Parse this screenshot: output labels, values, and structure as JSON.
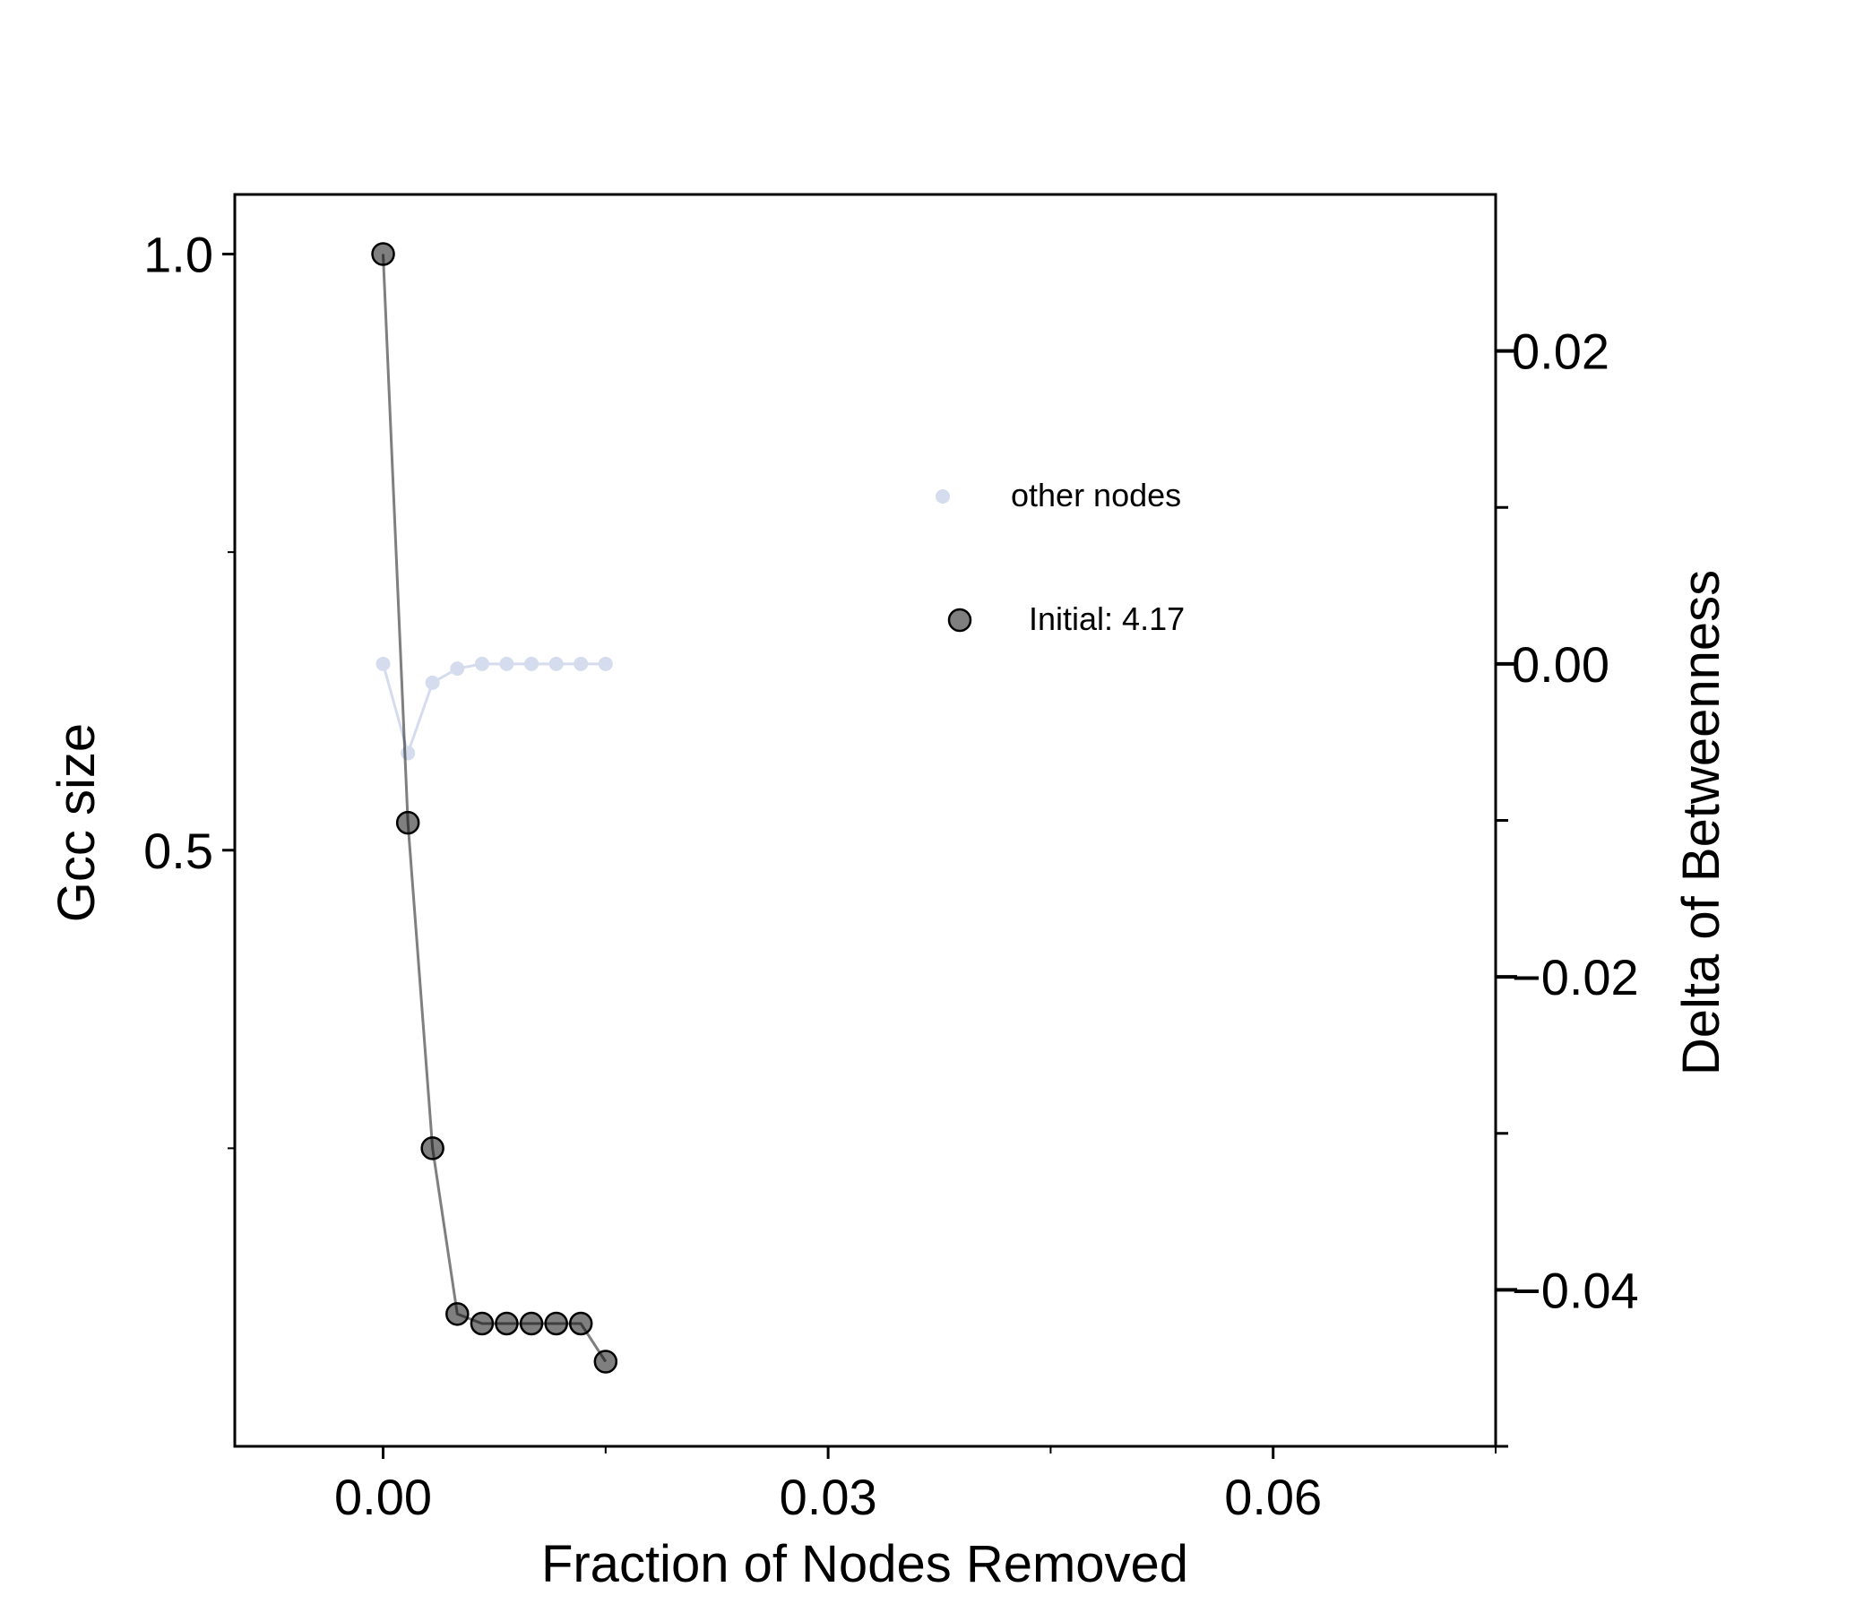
{
  "chart_data": {
    "type": "line",
    "title": "",
    "xlabel": "Fraction of Nodes Removed",
    "ylabel_left": "Gcc size",
    "ylabel_right": "Delta of Betweenness",
    "xlim": [
      -0.01,
      0.075
    ],
    "ylim_left": [
      0.0,
      1.05
    ],
    "ylim_right": [
      -0.05,
      0.03
    ],
    "x_ticks": [
      0.0,
      0.03,
      0.06
    ],
    "x_tick_labels": [
      "0.00",
      "0.03",
      "0.06"
    ],
    "x_minor_ticks": [
      0.015,
      0.045,
      0.075
    ],
    "y_left_ticks": [
      1.0,
      0.5
    ],
    "y_left_tick_labels": [
      "1.0",
      "0.5"
    ],
    "y_left_minor_ticks": [
      0.75,
      0.25
    ],
    "y_right_ticks": [
      0.02,
      0.0,
      -0.02,
      -0.04
    ],
    "y_right_tick_labels": [
      "0.02",
      "0.00",
      "−0.02",
      "−0.04"
    ],
    "y_right_minor_ticks": [
      0.01,
      -0.01,
      -0.03,
      -0.05
    ],
    "grid": false,
    "legend_position": "upper-right",
    "series": [
      {
        "name": "other nodes",
        "axis": "right",
        "color": "#d4dcee",
        "marker": "small-dot",
        "x": [
          0.0,
          0.00167,
          0.00333,
          0.005,
          0.00667,
          0.00833,
          0.01,
          0.01167,
          0.01333,
          0.015
        ],
        "y": [
          0.0,
          -0.0057,
          -0.0012,
          -0.0003,
          0.0,
          0.0,
          0.0,
          0.0,
          0.0,
          0.0
        ]
      },
      {
        "name": "Initial: 4.17",
        "axis": "left",
        "color": "#000000",
        "opacity": 0.5,
        "marker": "large-dot",
        "x": [
          0.0,
          0.00167,
          0.00333,
          0.005,
          0.00667,
          0.00833,
          0.01,
          0.01167,
          0.01333,
          0.015
        ],
        "y": [
          1.0,
          0.523,
          0.25,
          0.111,
          0.103,
          0.103,
          0.103,
          0.103,
          0.103,
          0.071
        ]
      }
    ]
  }
}
